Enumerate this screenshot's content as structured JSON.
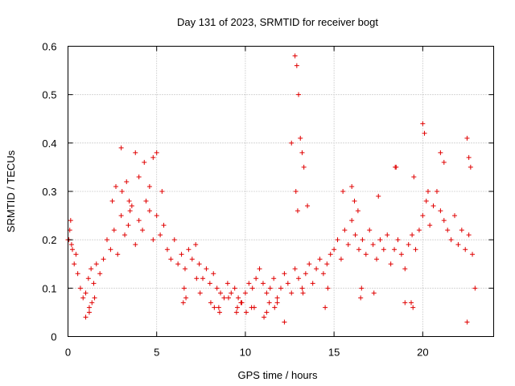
{
  "chart_data": {
    "type": "scatter",
    "title": "Day 131 of 2023, SRMTID for receiver bogt",
    "xlabel": "GPS time / hours",
    "ylabel": "SRMTID / TECUs",
    "xlim": [
      0,
      24
    ],
    "ylim": [
      0,
      0.6
    ],
    "x_ticks": [
      0,
      5,
      10,
      15,
      20
    ],
    "y_ticks": [
      0,
      0.1,
      0.2,
      0.3,
      0.4,
      0.5,
      0.6
    ],
    "x_tick_labels": [
      "0",
      "5",
      "10",
      "15",
      "20"
    ],
    "y_tick_labels": [
      "0",
      "0.1",
      "0.2",
      "0.3",
      "0.4",
      "0.5",
      "0.6"
    ],
    "grid": true,
    "marker": "+",
    "color": "#e00000",
    "series": [
      {
        "name": "SRMTID",
        "x": [
          0.05,
          0.15,
          0.25,
          0.35,
          0.45,
          0.55,
          0.7,
          0.85,
          1.0,
          1.15,
          1.3,
          1.45,
          1.6,
          1.8,
          2.0,
          2.2,
          2.4,
          2.6,
          2.8,
          3.0,
          3.2,
          3.4,
          3.6,
          3.8,
          4.0,
          4.2,
          4.4,
          4.6,
          4.8,
          5.0,
          5.2,
          5.4,
          5.6,
          5.8,
          6.0,
          6.2,
          6.4,
          6.6,
          6.8,
          7.0,
          7.2,
          7.4,
          7.6,
          7.8,
          8.0,
          8.2,
          8.4,
          8.6,
          8.8,
          9.0,
          9.2,
          9.4,
          9.6,
          9.8,
          10.0,
          10.2,
          10.4,
          10.6,
          10.8,
          11.0,
          11.2,
          11.4,
          11.6,
          11.8,
          12.0,
          12.2,
          12.4,
          12.6,
          12.8,
          13.0,
          13.2,
          13.4,
          13.6,
          13.8,
          14.0,
          14.2,
          14.4,
          14.6,
          14.8,
          15.0,
          15.2,
          15.4,
          15.6,
          15.8,
          16.0,
          16.2,
          16.4,
          16.6,
          16.8,
          17.0,
          17.2,
          17.4,
          17.6,
          17.8,
          18.0,
          18.2,
          18.4,
          18.6,
          18.8,
          19.0,
          19.2,
          19.4,
          19.6,
          19.8,
          20.0,
          20.2,
          20.4,
          20.6,
          20.8,
          21.0,
          21.2,
          21.4,
          21.6,
          21.8,
          22.0,
          22.2,
          22.4,
          22.6,
          22.8,
          2.5,
          2.7,
          3.0,
          3.5,
          3.8,
          4.0,
          4.3,
          4.6,
          4.8,
          5.0,
          5.3,
          1.0,
          1.2,
          3.3,
          6.5,
          8.5,
          9.5,
          10.5,
          11.2,
          11.8,
          12.2,
          12.6,
          12.8,
          12.9,
          13.0,
          13.1,
          13.2,
          13.3,
          13.5,
          14.5,
          15.5,
          16.0,
          16.5,
          17.5,
          18.5,
          19.0,
          19.5,
          20.0,
          20.1,
          20.3,
          21.0,
          21.2,
          22.5,
          22.6,
          22.7,
          22.5,
          0.0,
          0.1,
          0.2,
          1.2,
          1.35,
          1.5,
          3.05,
          3.45,
          6.55,
          6.65,
          7.25,
          7.45,
          8.05,
          8.25,
          8.55,
          9.05,
          9.55,
          9.75,
          10.05,
          10.35,
          11.05,
          11.35,
          11.65,
          12.85,
          12.95,
          13.25,
          14.65,
          16.15,
          16.35,
          16.55,
          17.25,
          18.45,
          19.35,
          19.45,
          22.95
        ],
        "y": [
          0.2,
          0.24,
          0.18,
          0.15,
          0.17,
          0.13,
          0.1,
          0.08,
          0.09,
          0.12,
          0.14,
          0.11,
          0.15,
          0.13,
          0.16,
          0.2,
          0.18,
          0.22,
          0.17,
          0.25,
          0.21,
          0.23,
          0.27,
          0.19,
          0.24,
          0.22,
          0.28,
          0.26,
          0.2,
          0.25,
          0.21,
          0.23,
          0.18,
          0.16,
          0.2,
          0.15,
          0.17,
          0.14,
          0.18,
          0.16,
          0.19,
          0.15,
          0.12,
          0.14,
          0.11,
          0.13,
          0.1,
          0.09,
          0.08,
          0.11,
          0.09,
          0.1,
          0.08,
          0.07,
          0.09,
          0.11,
          0.1,
          0.12,
          0.14,
          0.11,
          0.09,
          0.1,
          0.12,
          0.08,
          0.1,
          0.13,
          0.11,
          0.09,
          0.14,
          0.12,
          0.1,
          0.13,
          0.15,
          0.11,
          0.14,
          0.16,
          0.13,
          0.15,
          0.17,
          0.18,
          0.2,
          0.16,
          0.22,
          0.19,
          0.24,
          0.21,
          0.18,
          0.2,
          0.17,
          0.22,
          0.19,
          0.16,
          0.2,
          0.18,
          0.21,
          0.15,
          0.18,
          0.2,
          0.17,
          0.14,
          0.19,
          0.21,
          0.18,
          0.22,
          0.25,
          0.28,
          0.23,
          0.27,
          0.3,
          0.26,
          0.24,
          0.22,
          0.2,
          0.25,
          0.19,
          0.22,
          0.18,
          0.21,
          0.17,
          0.28,
          0.31,
          0.39,
          0.26,
          0.38,
          0.33,
          0.36,
          0.31,
          0.37,
          0.38,
          0.3,
          0.04,
          0.05,
          0.32,
          0.07,
          0.06,
          0.05,
          0.06,
          0.05,
          0.07,
          0.03,
          0.4,
          0.58,
          0.56,
          0.5,
          0.41,
          0.38,
          0.35,
          0.27,
          0.06,
          0.3,
          0.31,
          0.08,
          0.29,
          0.35,
          0.07,
          0.33,
          0.44,
          0.42,
          0.3,
          0.38,
          0.36,
          0.41,
          0.37,
          0.35,
          0.03,
          0.2,
          0.22,
          0.19,
          0.06,
          0.07,
          0.08,
          0.3,
          0.28,
          0.1,
          0.08,
          0.12,
          0.09,
          0.07,
          0.06,
          0.05,
          0.08,
          0.06,
          0.07,
          0.05,
          0.06,
          0.04,
          0.07,
          0.06,
          0.3,
          0.26,
          0.09,
          0.1,
          0.28,
          0.26,
          0.1,
          0.09,
          0.35,
          0.07,
          0.06,
          0.1
        ]
      }
    ]
  }
}
